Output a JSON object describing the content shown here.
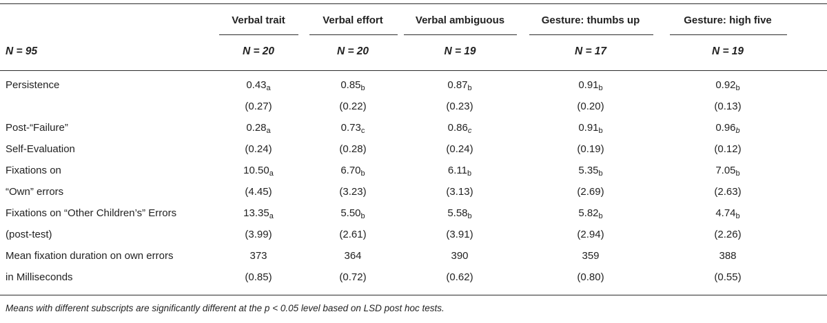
{
  "table": {
    "n_label": "N = 95",
    "columns": [
      {
        "label": "Verbal trait",
        "n": "N = 20"
      },
      {
        "label": "Verbal effort",
        "n": "N = 20"
      },
      {
        "label": "Verbal ambiguous",
        "n": "N = 19"
      },
      {
        "label": "Gesture: thumbs up",
        "n": "N = 17"
      },
      {
        "label": "Gesture: high five",
        "n": "N = 19"
      }
    ],
    "rows": [
      {
        "label": "Persistence",
        "cells": [
          {
            "value": "0.43",
            "sub": "a"
          },
          {
            "value": "0.85",
            "sub": "b"
          },
          {
            "value": "0.87",
            "sub": "b"
          },
          {
            "value": "0.91",
            "sub": "b"
          },
          {
            "value": "0.92",
            "sub": "b"
          }
        ]
      },
      {
        "label": "",
        "cells": [
          {
            "value": "(0.27)",
            "sub": ""
          },
          {
            "value": "(0.22)",
            "sub": ""
          },
          {
            "value": "(0.23)",
            "sub": ""
          },
          {
            "value": "(0.20)",
            "sub": ""
          },
          {
            "value": "(0.13)",
            "sub": ""
          }
        ]
      },
      {
        "label": "Post-“Failure”",
        "cells": [
          {
            "value": "0.28",
            "sub": "a"
          },
          {
            "value": "0.73",
            "sub": "c"
          },
          {
            "value": "0.86",
            "sub": "c",
            "italic": true
          },
          {
            "value": "0.91",
            "sub": "b"
          },
          {
            "value": "0.96",
            "sub": "b",
            "italic": true
          }
        ]
      },
      {
        "label": "Self-Evaluation",
        "cells": [
          {
            "value": "(0.24)",
            "sub": ""
          },
          {
            "value": "(0.28)",
            "sub": ""
          },
          {
            "value": "(0.24)",
            "sub": ""
          },
          {
            "value": "(0.19)",
            "sub": ""
          },
          {
            "value": "(0.12)",
            "sub": ""
          }
        ]
      },
      {
        "label": "Fixations on",
        "cells": [
          {
            "value": "10.50",
            "sub": "a"
          },
          {
            "value": "6.70",
            "sub": "b"
          },
          {
            "value": "6.11",
            "sub": "b"
          },
          {
            "value": "5.35",
            "sub": "b"
          },
          {
            "value": "7.05",
            "sub": "b"
          }
        ]
      },
      {
        "label": "“Own” errors",
        "cells": [
          {
            "value": "(4.45)",
            "sub": ""
          },
          {
            "value": "(3.23)",
            "sub": ""
          },
          {
            "value": "(3.13)",
            "sub": ""
          },
          {
            "value": "(2.69)",
            "sub": ""
          },
          {
            "value": "(2.63)",
            "sub": ""
          }
        ]
      },
      {
        "label": "Fixations on “Other Children’s” Errors",
        "cells": [
          {
            "value": "13.35",
            "sub": "a"
          },
          {
            "value": "5.50",
            "sub": "b"
          },
          {
            "value": "5.58",
            "sub": "b"
          },
          {
            "value": "5.82",
            "sub": "b"
          },
          {
            "value": "4.74",
            "sub": "b"
          }
        ]
      },
      {
        "label": "(post-test)",
        "cells": [
          {
            "value": "(3.99)",
            "sub": ""
          },
          {
            "value": "(2.61)",
            "sub": ""
          },
          {
            "value": "(3.91)",
            "sub": ""
          },
          {
            "value": "(2.94)",
            "sub": ""
          },
          {
            "value": "(2.26)",
            "sub": ""
          }
        ]
      },
      {
        "label": "Mean fixation duration on own errors",
        "cells": [
          {
            "value": "373",
            "sub": ""
          },
          {
            "value": "364",
            "sub": ""
          },
          {
            "value": "390",
            "sub": ""
          },
          {
            "value": "359",
            "sub": ""
          },
          {
            "value": "388",
            "sub": ""
          }
        ]
      },
      {
        "label": "in Milliseconds",
        "cells": [
          {
            "value": "(0.85)",
            "sub": ""
          },
          {
            "value": "(0.72)",
            "sub": ""
          },
          {
            "value": "(0.62)",
            "sub": ""
          },
          {
            "value": "(0.80)",
            "sub": ""
          },
          {
            "value": "(0.55)",
            "sub": ""
          }
        ]
      }
    ]
  },
  "footnote": "Means with different subscripts are significantly different at the p < 0.05 level based on LSD post hoc tests."
}
